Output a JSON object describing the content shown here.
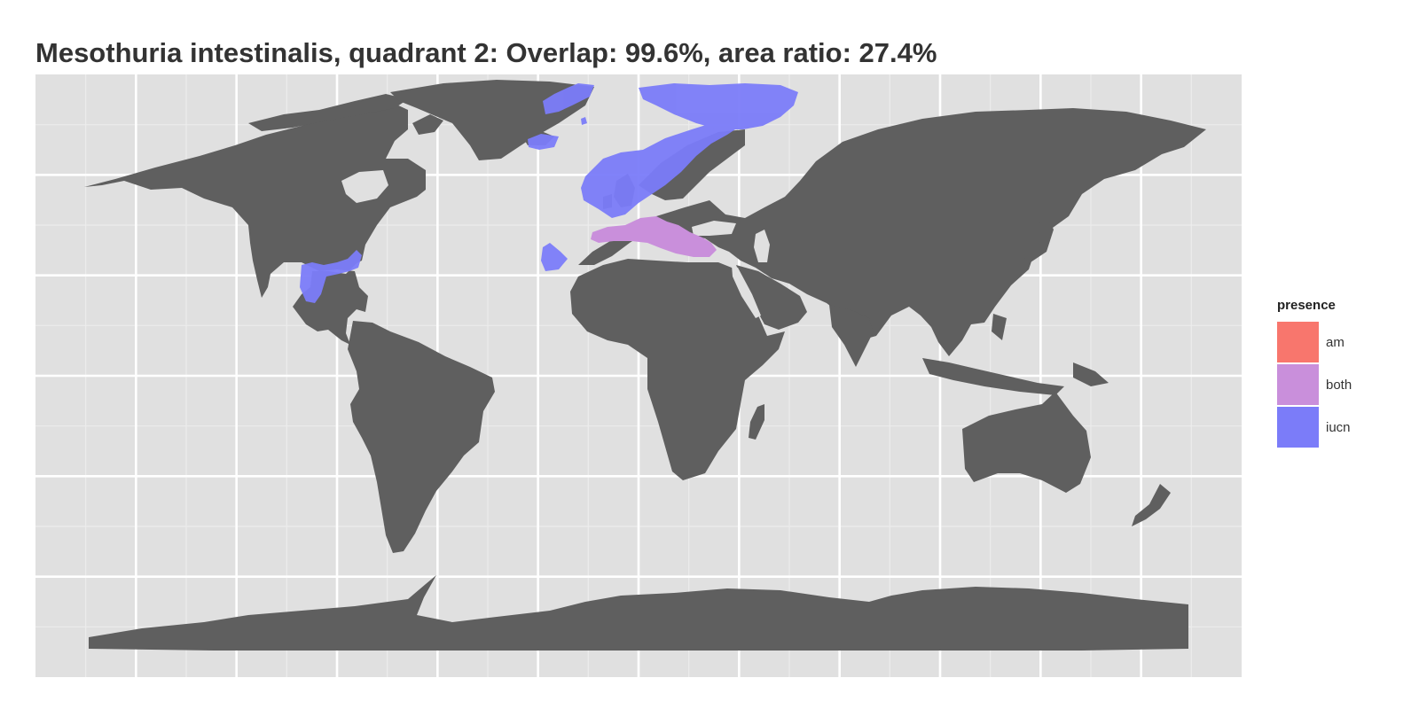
{
  "title": "Mesothuria intestinalis, quadrant 2: Overlap: 99.6%, area ratio: 27.4%",
  "colors": {
    "panel_bg": "#e0e0e0",
    "grid_major": "#ffffff",
    "land": "#5f5f5f",
    "am": "#f8766d",
    "both": "#c98fdb",
    "iucn": "#7b7cf9"
  },
  "legend": {
    "title": "presence",
    "items": [
      {
        "label": "am",
        "color": "#f8766d"
      },
      {
        "label": "both",
        "color": "#c98fdb"
      },
      {
        "label": "iucn",
        "color": "#7b7cf9"
      }
    ]
  },
  "map": {
    "projection": "equirectangular",
    "xlim": [
      -180,
      180
    ],
    "ylim": [
      -90,
      90
    ],
    "grid_major_lon": [
      -150,
      -120,
      -90,
      -60,
      -30,
      0,
      30,
      60,
      90,
      120,
      150
    ],
    "grid_major_lat": [
      -60,
      -30,
      0,
      30,
      60
    ],
    "ranges": [
      {
        "presence": "iucn",
        "region": "Greenland and Iceland waters"
      },
      {
        "presence": "iucn",
        "region": "Northeast Atlantic, North Sea and Norwegian Sea"
      },
      {
        "presence": "iucn",
        "region": "Barents Sea"
      },
      {
        "presence": "iucn",
        "region": "Gulf of Mexico"
      },
      {
        "presence": "iucn",
        "region": "Canary Islands"
      },
      {
        "presence": "both",
        "region": "Mediterranean Sea"
      }
    ]
  }
}
